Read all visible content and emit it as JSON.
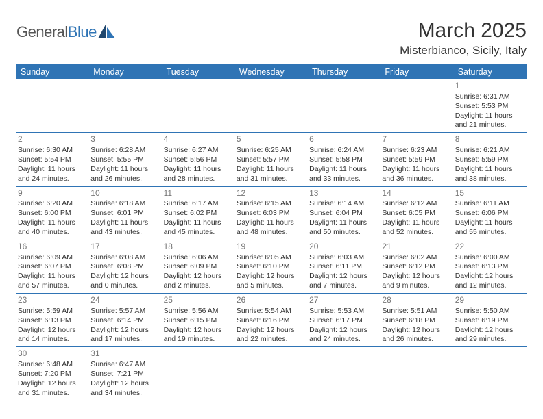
{
  "logo": {
    "text_general": "General",
    "text_blue": "Blue"
  },
  "title": "March 2025",
  "location": "Misterbianco, Sicily, Italy",
  "day_headers": [
    "Sunday",
    "Monday",
    "Tuesday",
    "Wednesday",
    "Thursday",
    "Friday",
    "Saturday"
  ],
  "colors": {
    "header_bg": "#2f74b5",
    "header_fg": "#ffffff",
    "cell_border": "#2f74b5",
    "daynum": "#777777",
    "text": "#333333"
  },
  "weeks": [
    [
      null,
      null,
      null,
      null,
      null,
      null,
      {
        "d": "1",
        "sr": "Sunrise: 6:31 AM",
        "ss": "Sunset: 5:53 PM",
        "dl1": "Daylight: 11 hours",
        "dl2": "and 21 minutes."
      }
    ],
    [
      {
        "d": "2",
        "sr": "Sunrise: 6:30 AM",
        "ss": "Sunset: 5:54 PM",
        "dl1": "Daylight: 11 hours",
        "dl2": "and 24 minutes."
      },
      {
        "d": "3",
        "sr": "Sunrise: 6:28 AM",
        "ss": "Sunset: 5:55 PM",
        "dl1": "Daylight: 11 hours",
        "dl2": "and 26 minutes."
      },
      {
        "d": "4",
        "sr": "Sunrise: 6:27 AM",
        "ss": "Sunset: 5:56 PM",
        "dl1": "Daylight: 11 hours",
        "dl2": "and 28 minutes."
      },
      {
        "d": "5",
        "sr": "Sunrise: 6:25 AM",
        "ss": "Sunset: 5:57 PM",
        "dl1": "Daylight: 11 hours",
        "dl2": "and 31 minutes."
      },
      {
        "d": "6",
        "sr": "Sunrise: 6:24 AM",
        "ss": "Sunset: 5:58 PM",
        "dl1": "Daylight: 11 hours",
        "dl2": "and 33 minutes."
      },
      {
        "d": "7",
        "sr": "Sunrise: 6:23 AM",
        "ss": "Sunset: 5:59 PM",
        "dl1": "Daylight: 11 hours",
        "dl2": "and 36 minutes."
      },
      {
        "d": "8",
        "sr": "Sunrise: 6:21 AM",
        "ss": "Sunset: 5:59 PM",
        "dl1": "Daylight: 11 hours",
        "dl2": "and 38 minutes."
      }
    ],
    [
      {
        "d": "9",
        "sr": "Sunrise: 6:20 AM",
        "ss": "Sunset: 6:00 PM",
        "dl1": "Daylight: 11 hours",
        "dl2": "and 40 minutes."
      },
      {
        "d": "10",
        "sr": "Sunrise: 6:18 AM",
        "ss": "Sunset: 6:01 PM",
        "dl1": "Daylight: 11 hours",
        "dl2": "and 43 minutes."
      },
      {
        "d": "11",
        "sr": "Sunrise: 6:17 AM",
        "ss": "Sunset: 6:02 PM",
        "dl1": "Daylight: 11 hours",
        "dl2": "and 45 minutes."
      },
      {
        "d": "12",
        "sr": "Sunrise: 6:15 AM",
        "ss": "Sunset: 6:03 PM",
        "dl1": "Daylight: 11 hours",
        "dl2": "and 48 minutes."
      },
      {
        "d": "13",
        "sr": "Sunrise: 6:14 AM",
        "ss": "Sunset: 6:04 PM",
        "dl1": "Daylight: 11 hours",
        "dl2": "and 50 minutes."
      },
      {
        "d": "14",
        "sr": "Sunrise: 6:12 AM",
        "ss": "Sunset: 6:05 PM",
        "dl1": "Daylight: 11 hours",
        "dl2": "and 52 minutes."
      },
      {
        "d": "15",
        "sr": "Sunrise: 6:11 AM",
        "ss": "Sunset: 6:06 PM",
        "dl1": "Daylight: 11 hours",
        "dl2": "and 55 minutes."
      }
    ],
    [
      {
        "d": "16",
        "sr": "Sunrise: 6:09 AM",
        "ss": "Sunset: 6:07 PM",
        "dl1": "Daylight: 11 hours",
        "dl2": "and 57 minutes."
      },
      {
        "d": "17",
        "sr": "Sunrise: 6:08 AM",
        "ss": "Sunset: 6:08 PM",
        "dl1": "Daylight: 12 hours",
        "dl2": "and 0 minutes."
      },
      {
        "d": "18",
        "sr": "Sunrise: 6:06 AM",
        "ss": "Sunset: 6:09 PM",
        "dl1": "Daylight: 12 hours",
        "dl2": "and 2 minutes."
      },
      {
        "d": "19",
        "sr": "Sunrise: 6:05 AM",
        "ss": "Sunset: 6:10 PM",
        "dl1": "Daylight: 12 hours",
        "dl2": "and 5 minutes."
      },
      {
        "d": "20",
        "sr": "Sunrise: 6:03 AM",
        "ss": "Sunset: 6:11 PM",
        "dl1": "Daylight: 12 hours",
        "dl2": "and 7 minutes."
      },
      {
        "d": "21",
        "sr": "Sunrise: 6:02 AM",
        "ss": "Sunset: 6:12 PM",
        "dl1": "Daylight: 12 hours",
        "dl2": "and 9 minutes."
      },
      {
        "d": "22",
        "sr": "Sunrise: 6:00 AM",
        "ss": "Sunset: 6:13 PM",
        "dl1": "Daylight: 12 hours",
        "dl2": "and 12 minutes."
      }
    ],
    [
      {
        "d": "23",
        "sr": "Sunrise: 5:59 AM",
        "ss": "Sunset: 6:13 PM",
        "dl1": "Daylight: 12 hours",
        "dl2": "and 14 minutes."
      },
      {
        "d": "24",
        "sr": "Sunrise: 5:57 AM",
        "ss": "Sunset: 6:14 PM",
        "dl1": "Daylight: 12 hours",
        "dl2": "and 17 minutes."
      },
      {
        "d": "25",
        "sr": "Sunrise: 5:56 AM",
        "ss": "Sunset: 6:15 PM",
        "dl1": "Daylight: 12 hours",
        "dl2": "and 19 minutes."
      },
      {
        "d": "26",
        "sr": "Sunrise: 5:54 AM",
        "ss": "Sunset: 6:16 PM",
        "dl1": "Daylight: 12 hours",
        "dl2": "and 22 minutes."
      },
      {
        "d": "27",
        "sr": "Sunrise: 5:53 AM",
        "ss": "Sunset: 6:17 PM",
        "dl1": "Daylight: 12 hours",
        "dl2": "and 24 minutes."
      },
      {
        "d": "28",
        "sr": "Sunrise: 5:51 AM",
        "ss": "Sunset: 6:18 PM",
        "dl1": "Daylight: 12 hours",
        "dl2": "and 26 minutes."
      },
      {
        "d": "29",
        "sr": "Sunrise: 5:50 AM",
        "ss": "Sunset: 6:19 PM",
        "dl1": "Daylight: 12 hours",
        "dl2": "and 29 minutes."
      }
    ],
    [
      {
        "d": "30",
        "sr": "Sunrise: 6:48 AM",
        "ss": "Sunset: 7:20 PM",
        "dl1": "Daylight: 12 hours",
        "dl2": "and 31 minutes."
      },
      {
        "d": "31",
        "sr": "Sunrise: 6:47 AM",
        "ss": "Sunset: 7:21 PM",
        "dl1": "Daylight: 12 hours",
        "dl2": "and 34 minutes."
      },
      null,
      null,
      null,
      null,
      null
    ]
  ]
}
